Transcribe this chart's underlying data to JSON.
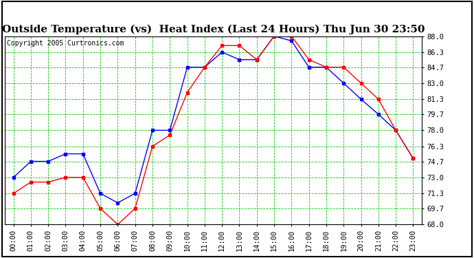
{
  "title": "Outside Temperature (vs)  Heat Index (Last 24 Hours) Thu Jun 30 23:50",
  "copyright": "Copyright 2005 Curtronics.com",
  "background_color": "#ffffff",
  "plot_bg_color": "#ffffff",
  "grid_color": "#00cc00",
  "x_labels": [
    "00:00",
    "01:00",
    "02:00",
    "03:00",
    "04:00",
    "05:00",
    "06:00",
    "07:00",
    "08:00",
    "09:00",
    "10:00",
    "11:00",
    "12:00",
    "13:00",
    "14:00",
    "15:00",
    "16:00",
    "17:00",
    "18:00",
    "19:00",
    "20:00",
    "21:00",
    "22:00",
    "23:00"
  ],
  "y_ticks": [
    68.0,
    69.7,
    71.3,
    73.0,
    74.7,
    76.3,
    78.0,
    79.7,
    81.3,
    83.0,
    84.7,
    86.3,
    88.0
  ],
  "blue_data": [
    73.0,
    74.7,
    74.7,
    75.5,
    75.5,
    71.3,
    70.3,
    71.3,
    78.0,
    78.0,
    84.7,
    84.7,
    86.3,
    85.5,
    85.5,
    88.0,
    87.5,
    84.7,
    84.7,
    83.0,
    81.3,
    79.7,
    78.0,
    75.0
  ],
  "red_data": [
    71.3,
    72.5,
    72.5,
    73.0,
    73.0,
    69.7,
    68.0,
    69.7,
    76.3,
    77.5,
    82.0,
    84.7,
    87.0,
    87.0,
    85.5,
    88.0,
    88.0,
    85.5,
    84.7,
    84.7,
    83.0,
    81.3,
    78.0,
    75.0
  ],
  "blue_color": "#0000ff",
  "red_color": "#ff0000",
  "ylim_min": 68.0,
  "ylim_max": 88.0,
  "title_fontsize": 11,
  "tick_fontsize": 7.5,
  "copyright_fontsize": 7
}
